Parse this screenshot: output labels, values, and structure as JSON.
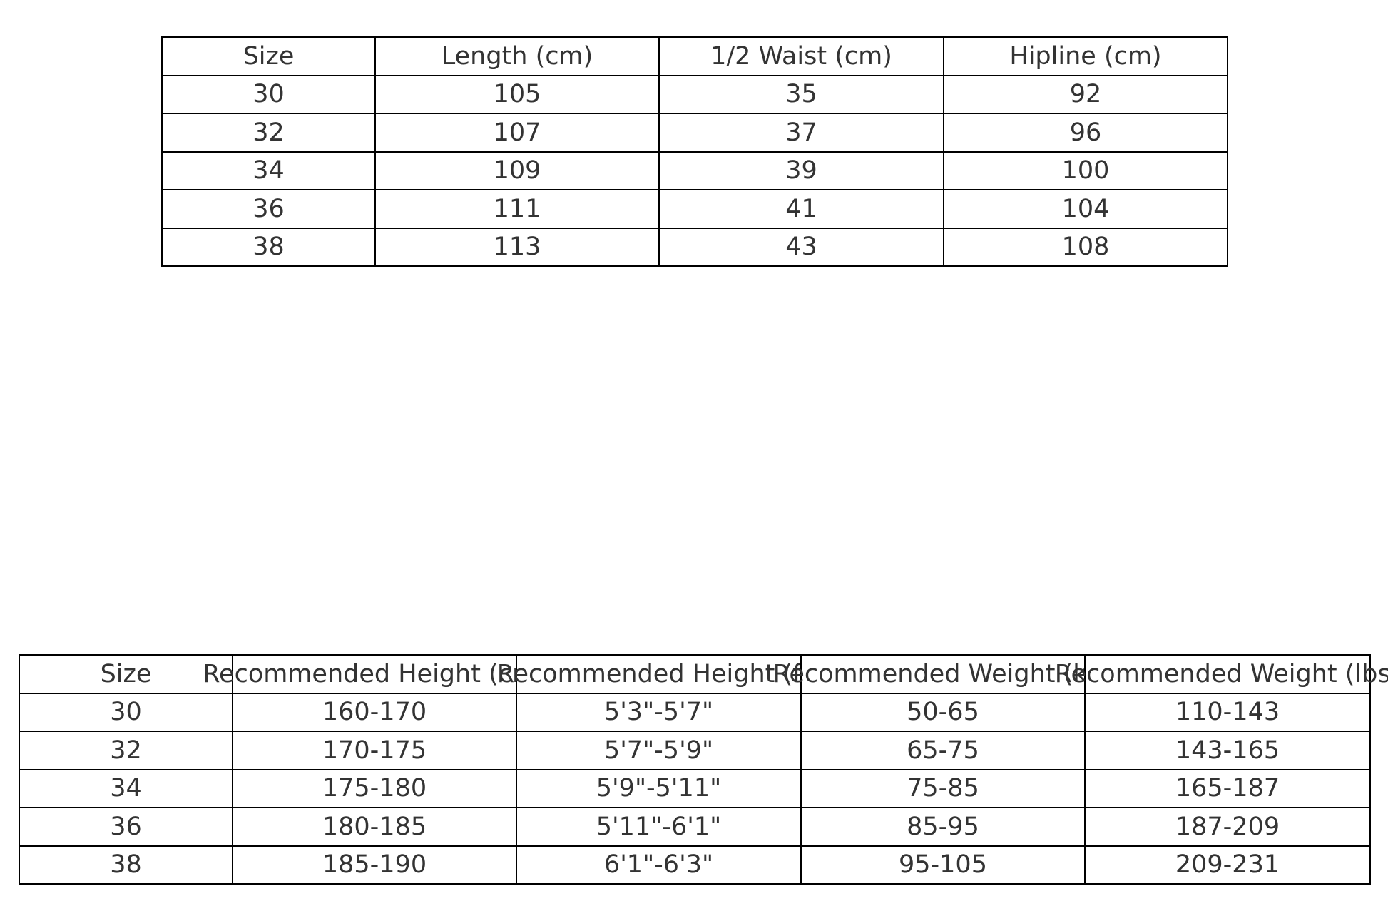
{
  "measurements_table": {
    "headers": [
      "Size",
      "Length (cm)",
      "1/2 Waist (cm)",
      "Hipline (cm)"
    ],
    "rows": [
      [
        "30",
        "105",
        "35",
        "92"
      ],
      [
        "32",
        "107",
        "37",
        "96"
      ],
      [
        "34",
        "109",
        "39",
        "100"
      ],
      [
        "36",
        "111",
        "41",
        "104"
      ],
      [
        "38",
        "113",
        "43",
        "108"
      ]
    ]
  },
  "recommendation_table": {
    "headers": [
      "Size",
      "Recommended Height (cm)",
      "Recommended Height (ft)",
      "Recommended Weight (kg)",
      "Recommended Weight (lbs)"
    ],
    "rows": [
      [
        "30",
        "160-170",
        "5'3\"-5'7\"",
        "50-65",
        "110-143"
      ],
      [
        "32",
        "170-175",
        "5'7\"-5'9\"",
        "65-75",
        "143-165"
      ],
      [
        "34",
        "175-180",
        "5'9\"-5'11\"",
        "75-85",
        "165-187"
      ],
      [
        "36",
        "180-185",
        "5'11\"-6'1\"",
        "85-95",
        "187-209"
      ],
      [
        "38",
        "185-190",
        "6'1\"-6'3\"",
        "95-105",
        "209-231"
      ]
    ]
  }
}
